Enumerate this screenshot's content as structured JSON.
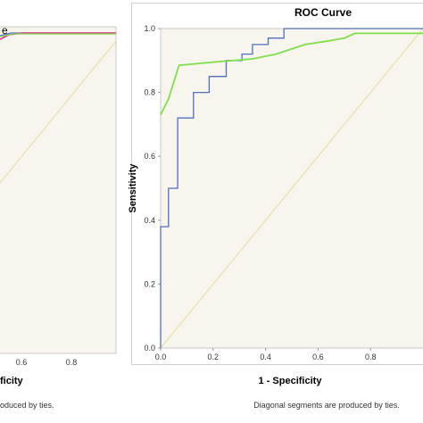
{
  "colors": {
    "plot_bg": "#f7f5ee",
    "frame": "#c9c9c9",
    "diagonal": "#e6dc9a",
    "blue_series": "#4f6fc0",
    "green_series": "#7ee04b",
    "pink_series": "#e0338a"
  },
  "left_panel": {
    "title_fragment": "e",
    "x_ticks": [
      "0.6",
      "0.8"
    ],
    "x_label_fragment": "ficity",
    "footnote_fragment": "oduced by ties."
  },
  "chart_data": [
    {
      "type": "line",
      "title": "ROC Curve",
      "xlabel": "1 - Specificity",
      "ylabel": "Sensitivity",
      "xlim": [
        0,
        1
      ],
      "ylim": [
        0,
        1
      ],
      "x_ticks": [
        "0.0",
        "0.2",
        "0.4",
        "0.6",
        "0.8"
      ],
      "y_ticks": [
        "0.0",
        "0.2",
        "0.4",
        "0.6",
        "0.8",
        "1.0"
      ],
      "grid": false,
      "footnote": "Diagonal segments are produced by ties.",
      "series": [
        {
          "color": "#4f6fc0",
          "points": [
            [
              0,
              0
            ],
            [
              0,
              0.38
            ],
            [
              0.03,
              0.38
            ],
            [
              0.03,
              0.5
            ],
            [
              0.065,
              0.5
            ],
            [
              0.065,
              0.72
            ],
            [
              0.125,
              0.72
            ],
            [
              0.125,
              0.8
            ],
            [
              0.185,
              0.8
            ],
            [
              0.185,
              0.85
            ],
            [
              0.25,
              0.85
            ],
            [
              0.25,
              0.9
            ],
            [
              0.31,
              0.9
            ],
            [
              0.31,
              0.92
            ],
            [
              0.35,
              0.92
            ],
            [
              0.35,
              0.95
            ],
            [
              0.41,
              0.95
            ],
            [
              0.41,
              0.97
            ],
            [
              0.47,
              0.97
            ],
            [
              0.47,
              1.0
            ],
            [
              1.0,
              1.0
            ]
          ]
        },
        {
          "color": "#7ee04b",
          "points": [
            [
              0,
              0.73
            ],
            [
              0.03,
              0.78
            ],
            [
              0.07,
              0.885
            ],
            [
              0.2,
              0.895
            ],
            [
              0.35,
              0.905
            ],
            [
              0.44,
              0.92
            ],
            [
              0.55,
              0.95
            ],
            [
              0.63,
              0.96
            ],
            [
              0.7,
              0.97
            ],
            [
              0.74,
              0.985
            ],
            [
              0.85,
              0.985
            ],
            [
              1.0,
              0.985
            ]
          ]
        },
        {
          "color": "#e6dc9a",
          "points": [
            [
              0,
              0
            ],
            [
              1,
              1
            ]
          ]
        }
      ]
    }
  ]
}
